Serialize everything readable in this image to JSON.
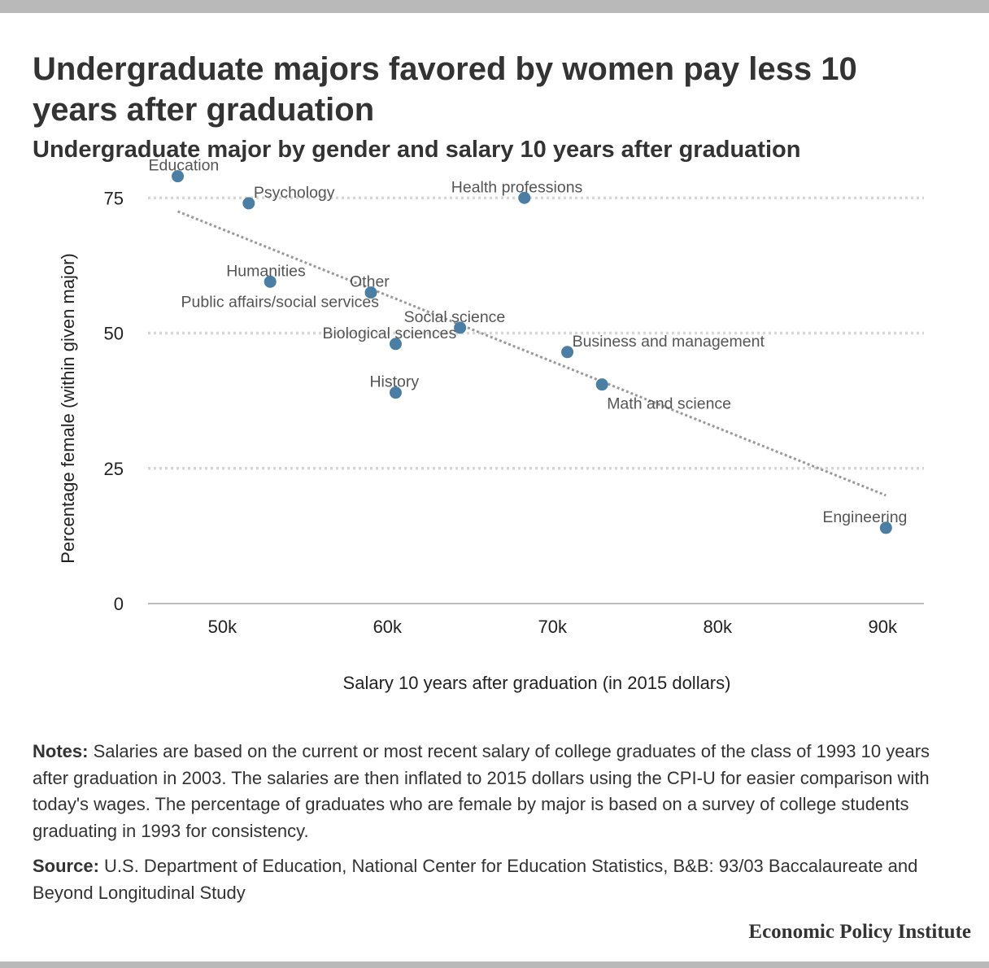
{
  "header": {
    "title": "Undergraduate majors favored by women pay less 10 years after graduation",
    "subtitle": "Undergraduate major by gender and salary 10 years after graduation"
  },
  "chart_data": {
    "type": "scatter",
    "xlabel": "Salary 10 years after graduation (in 2015 dollars)",
    "ylabel": "Percentage female (within given major)",
    "xlim": [
      45500,
      92500
    ],
    "ylim": [
      0,
      80
    ],
    "x_ticks": [
      50000,
      60000,
      70000,
      80000,
      90000
    ],
    "x_tick_labels": [
      "50k",
      "60k",
      "70k",
      "80k",
      "90k"
    ],
    "y_ticks": [
      0,
      25,
      50,
      75
    ],
    "y_tick_labels": [
      "0",
      "25",
      "50",
      "75"
    ],
    "grid": "horizontal dotted",
    "point_color": "#4a7ea4",
    "trend_color": "#999999",
    "points": [
      {
        "label": "Education",
        "x": 47300,
        "y": 79
      },
      {
        "label": "Psychology",
        "x": 51600,
        "y": 74
      },
      {
        "label": "Humanities",
        "x": 52900,
        "y": 59.5
      },
      {
        "label": "Public affairs/social services",
        "x": 59000,
        "y": 57.5
      },
      {
        "label": "Other",
        "x": 59000,
        "y": 57.5
      },
      {
        "label": "Biological sciences",
        "x": 60500,
        "y": 48
      },
      {
        "label": "History",
        "x": 60500,
        "y": 39
      },
      {
        "label": "Social science",
        "x": 64400,
        "y": 51
      },
      {
        "label": "Health professions",
        "x": 68300,
        "y": 75
      },
      {
        "label": "Business and management",
        "x": 70900,
        "y": 46.5
      },
      {
        "label": "Math and science",
        "x": 73000,
        "y": 40.5
      },
      {
        "label": "Engineering",
        "x": 90200,
        "y": 14
      }
    ],
    "trendline": {
      "x": [
        47300,
        90200
      ],
      "y": [
        72.5,
        20
      ]
    }
  },
  "footer": {
    "notes_label": "Notes:",
    "notes_text": " Salaries are based on the current or most recent salary of college graduates of the class of 1993 10 years after graduation in 2003. The salaries are then inflated to 2015 dollars using the CPI-U for easier comparison with today's wages. The percentage of graduates who are female by major is based on a survey of college students graduating in 1993 for consistency.",
    "source_label": "Source:",
    "source_text": " U.S. Department of Education, National Center for Education Statistics, B&B: 93/03 Baccalaureate and Beyond Longitudinal Study",
    "brand": "Economic Policy Institute"
  }
}
